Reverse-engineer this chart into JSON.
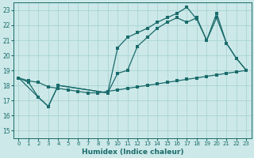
{
  "xlabel": "Humidex (Indice chaleur)",
  "bg_color": "#cce8e8",
  "grid_color": "#aad4d4",
  "line_color": "#1a6b6b",
  "xlim": [
    -0.5,
    23.5
  ],
  "ylim": [
    14.5,
    23.5
  ],
  "xticks": [
    0,
    1,
    2,
    3,
    4,
    5,
    6,
    7,
    8,
    9,
    10,
    11,
    12,
    13,
    14,
    15,
    16,
    17,
    18,
    19,
    20,
    21,
    22,
    23
  ],
  "yticks": [
    15,
    16,
    17,
    18,
    19,
    20,
    21,
    22,
    23
  ],
  "line1_x": [
    0,
    1,
    2,
    3,
    4,
    5,
    6,
    7,
    8,
    9,
    10,
    11,
    12,
    13,
    14,
    15,
    16,
    17,
    18,
    19,
    20,
    21,
    22,
    23
  ],
  "line1_y": [
    18.5,
    18.3,
    18.2,
    17.9,
    17.8,
    17.7,
    17.6,
    17.5,
    17.5,
    17.6,
    17.7,
    17.8,
    17.9,
    18.0,
    18.1,
    18.2,
    18.3,
    18.4,
    18.5,
    18.6,
    18.7,
    18.8,
    18.9,
    19.0
  ],
  "line2_x": [
    0,
    1,
    2,
    3,
    4,
    9,
    10,
    11,
    12,
    13,
    14,
    15,
    16,
    17,
    18,
    19,
    20,
    21,
    22,
    23
  ],
  "line2_y": [
    18.5,
    18.2,
    17.2,
    16.6,
    18.0,
    17.5,
    18.8,
    19.0,
    20.6,
    21.2,
    21.8,
    22.2,
    22.5,
    22.2,
    22.5,
    21.0,
    22.5,
    20.8,
    19.8,
    19.0
  ],
  "line3_x": [
    0,
    2,
    3,
    4,
    9,
    10,
    11,
    12,
    13,
    14,
    15,
    16,
    17,
    18,
    19,
    20,
    21,
    22,
    23
  ],
  "line3_y": [
    18.5,
    17.2,
    16.6,
    18.0,
    17.5,
    20.5,
    21.2,
    21.5,
    21.8,
    22.2,
    22.5,
    22.8,
    23.2,
    22.4,
    21.0,
    22.8,
    20.8,
    19.8,
    19.0
  ]
}
